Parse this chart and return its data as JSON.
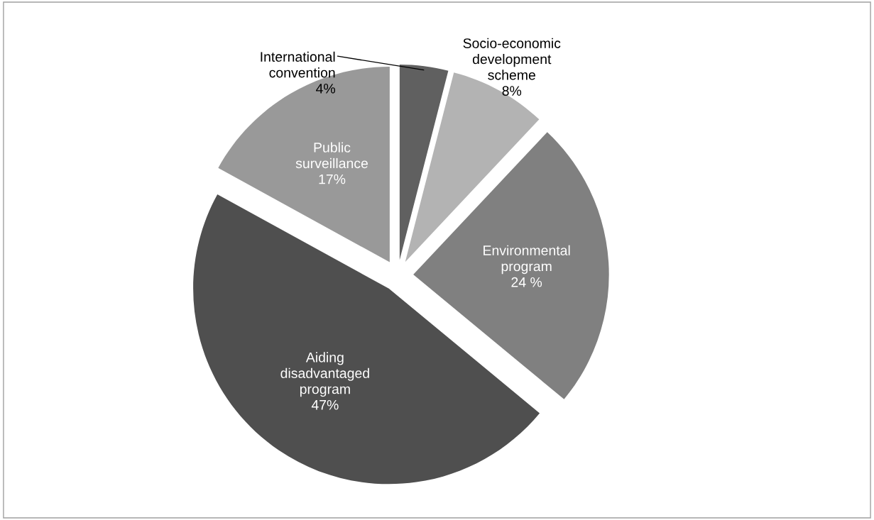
{
  "chart_data": {
    "type": "pie",
    "categories": [
      "International\nconvention",
      "Socio-economic\ndevelopment\nscheme",
      "Environmental\nprogram",
      "Aiding\ndisadvantaged\nprogram",
      "Public\nsurveillance"
    ],
    "values": [
      4,
      8,
      24,
      47,
      17
    ],
    "colors": [
      "#606060",
      "#b3b3b3",
      "#808080",
      "#4f4f4f",
      "#999999"
    ],
    "value_labels": [
      "4%",
      "8%",
      "24 %",
      "47%",
      "17%"
    ],
    "legend": false
  }
}
